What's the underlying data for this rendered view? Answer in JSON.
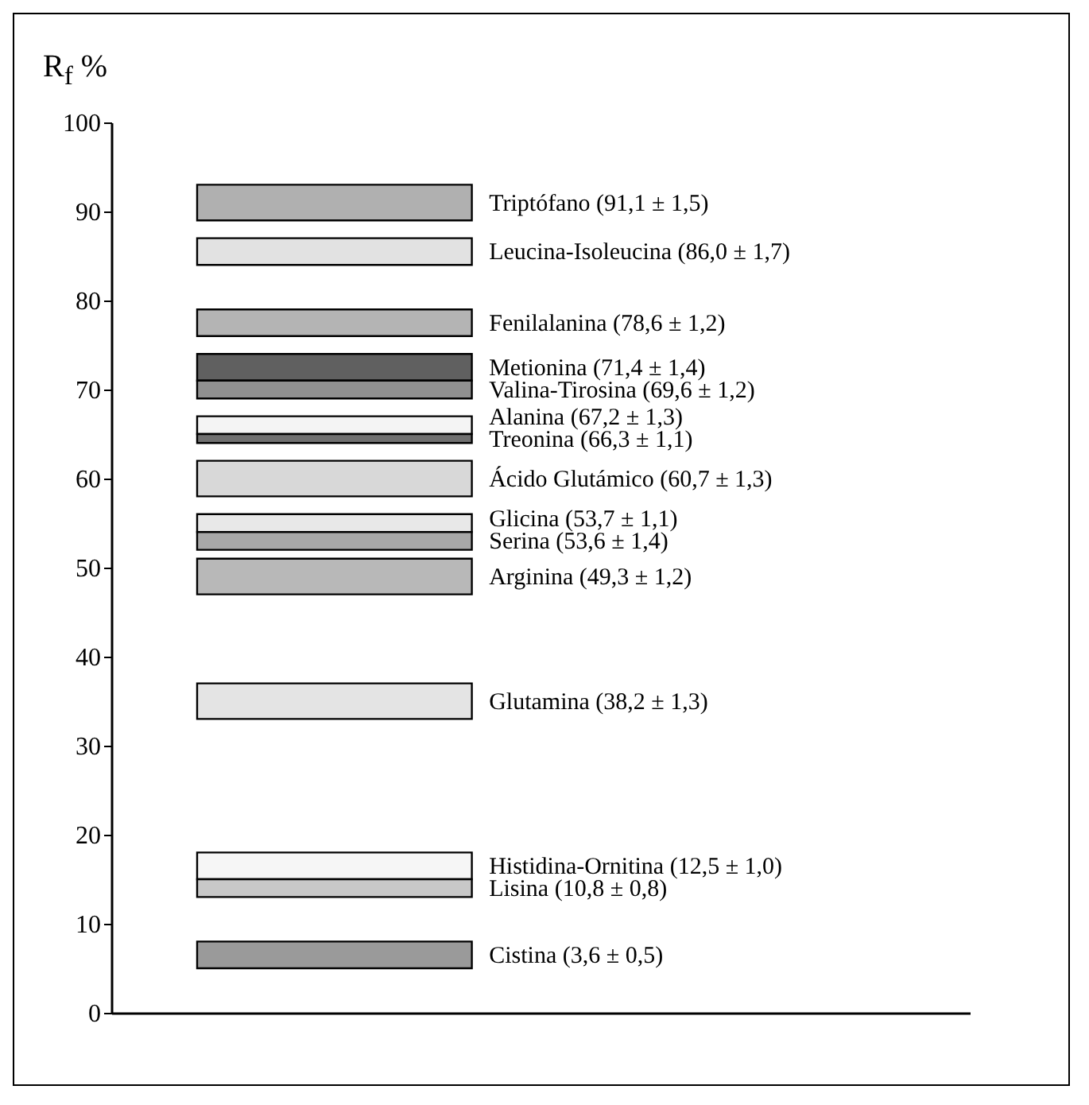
{
  "chart_data": {
    "type": "bar",
    "ylabel": "R$_{f}$ %",
    "ylim": [
      0,
      100
    ],
    "yticks": [
      0,
      10,
      20,
      30,
      40,
      50,
      60,
      70,
      80,
      90,
      100
    ],
    "tick_labels": "y",
    "categories": [
      null
    ],
    "series": [
      {
        "name": "Triptófano (91,1 ± 1,5)",
        "color": "#b0b0b0",
        "base": [
          89
        ],
        "values": [
          4
        ]
      },
      {
        "name": "Leucina-Isoleucina (86,0 ± 1,7)",
        "color": "#e2e2e2",
        "base": [
          84
        ],
        "values": [
          3
        ]
      },
      {
        "name": "Fenilalanina (78,6 ± 1,2)",
        "color": "#b4b4b4",
        "base": [
          76
        ],
        "values": [
          3
        ]
      },
      {
        "name": "Metionina (71,4 ± 1,4)",
        "color": "#606060",
        "base": [
          71
        ],
        "values": [
          3
        ]
      },
      {
        "name": "Valina-Tirosina (69,6 ± 1,2)",
        "color": "#909090",
        "base": [
          69
        ],
        "values": [
          2
        ]
      },
      {
        "name": "Alanina (67,2 ± 1,3)",
        "color": "#f4f4f4",
        "base": [
          65
        ],
        "values": [
          2
        ]
      },
      {
        "name": "Treonina (66,3 ± 1,1)",
        "color": "#707070",
        "base": [
          64
        ],
        "values": [
          1
        ]
      },
      {
        "name": "Ácido Glutámico (60,7 ± 1,3)",
        "color": "#d8d8d8",
        "base": [
          58
        ],
        "values": [
          4
        ]
      },
      {
        "name": "Glicina (53,7 ± 1,1)",
        "color": "#e8e8e8",
        "base": [
          54
        ],
        "values": [
          2
        ]
      },
      {
        "name": "Serina (53,6 ± 1,4)",
        "color": "#a8a8a8",
        "base": [
          52
        ],
        "values": [
          2
        ]
      },
      {
        "name": "Arginina (49,3 ± 1,2)",
        "color": "#b8b8b8",
        "base": [
          47
        ],
        "values": [
          4
        ]
      },
      {
        "name": "Glutamina (38,2 ± 1,3)",
        "color": "#e4e4e4",
        "base": [
          33
        ],
        "values": [
          4
        ]
      },
      {
        "name": "Histidina-Ornitina (12,5 ± 1,0)",
        "color": "#f6f6f6",
        "base": [
          15
        ],
        "values": [
          3
        ]
      },
      {
        "name": "Lisina (10,8 ± 0,8)",
        "color": "#c8c8c8",
        "base": [
          13
        ],
        "values": [
          2
        ]
      },
      {
        "name": "Cistina (3,6 ± 0,5)",
        "color": "#9a9a9a",
        "base": [
          5
        ],
        "values": [
          3
        ]
      }
    ]
  }
}
